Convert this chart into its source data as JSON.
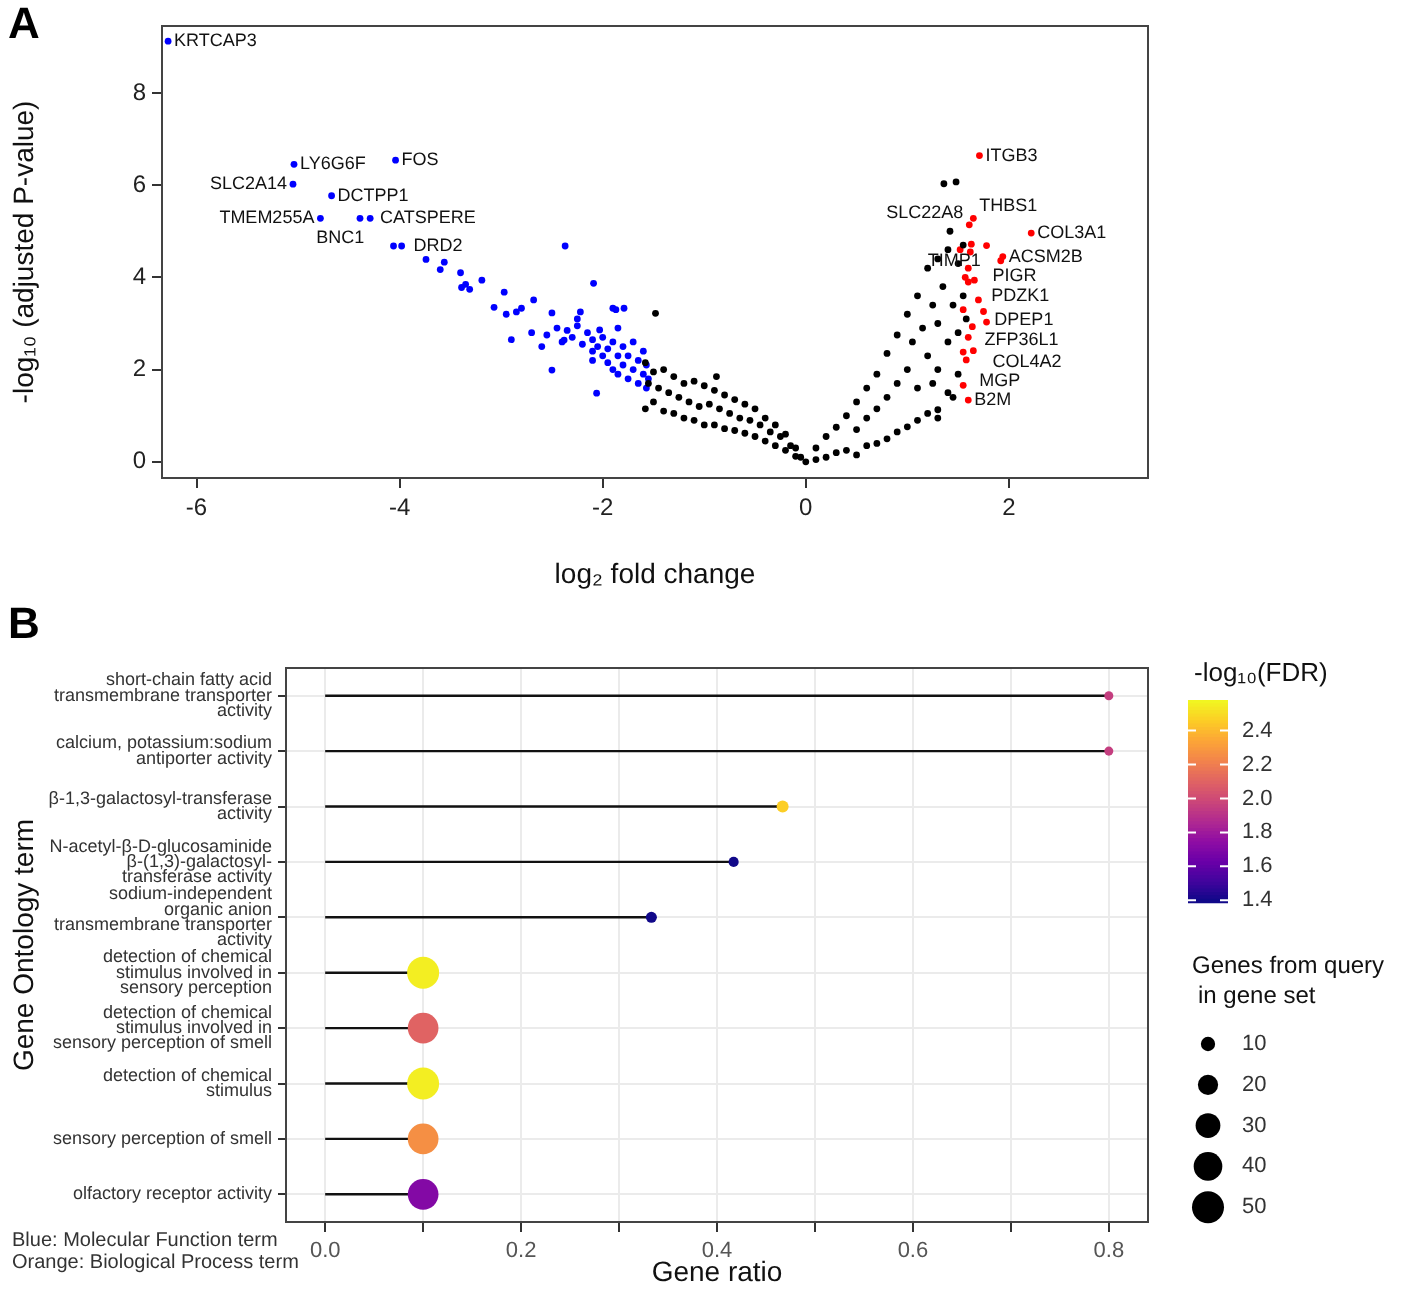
{
  "chart_data": [
    {
      "type": "scatter",
      "title": "A",
      "xlabel": "log₂ fold change",
      "ylabel": "-log₁₀ (adjusted P-value)",
      "xlim": [
        -6.34,
        3.37
      ],
      "ylim": [
        -0.35,
        9.45
      ],
      "xticks": [
        -6,
        -4,
        -2,
        0,
        2
      ],
      "yticks": [
        0,
        2,
        4,
        6,
        8
      ],
      "grid": false,
      "legend": false,
      "marker": "circle",
      "series": [
        {
          "color": "#000000",
          "x": [
            -1.58,
            -1.58,
            -1.55,
            -1.5,
            -1.5,
            -1.48,
            -1.45,
            -1.4,
            -1.4,
            -1.35,
            -1.3,
            -1.3,
            -1.25,
            -1.2,
            -1.2,
            -1.15,
            -1.1,
            -1.1,
            -1.05,
            -1.0,
            -1.0,
            -0.95,
            -0.9,
            -0.9,
            -0.88,
            -0.85,
            -0.8,
            -0.8,
            -0.75,
            -0.7,
            -0.7,
            -0.65,
            -0.6,
            -0.6,
            -0.55,
            -0.5,
            -0.5,
            -0.45,
            -0.4,
            -0.4,
            -0.35,
            -0.3,
            -0.3,
            -0.25,
            -0.2,
            -0.2,
            -0.15,
            -0.1,
            -0.1,
            -0.05,
            0,
            0.1,
            0.1,
            0.2,
            0.2,
            0.3,
            0.3,
            0.4,
            0.4,
            0.5,
            0.5,
            0.5,
            0.6,
            0.6,
            0.6,
            0.7,
            0.7,
            0.7,
            0.8,
            0.8,
            0.8,
            0.9,
            0.9,
            0.9,
            1.0,
            1.0,
            1.0,
            1.05,
            1.1,
            1.1,
            1.1,
            1.15,
            1.2,
            1.2,
            1.2,
            1.25,
            1.3,
            1.3,
            1.3,
            1.3,
            1.35,
            1.36,
            1.4,
            1.4,
            1.4,
            1.45,
            1.48,
            1.5,
            1.5,
            1.5,
            1.55,
            1.3,
            1.42,
            1.45,
            1.55,
            1.58,
            1.25
          ],
          "values": [
            2.15,
            1.15,
            1.7,
            1.95,
            1.3,
            3.22,
            1.6,
            2.0,
            1.1,
            1.5,
            1.85,
            1.05,
            1.4,
            1.7,
            0.95,
            1.3,
            1.75,
            0.9,
            1.2,
            1.65,
            0.8,
            1.25,
            1.55,
            0.8,
            1.85,
            1.15,
            1.45,
            0.72,
            1.05,
            1.35,
            0.68,
            0.95,
            1.25,
            0.62,
            0.9,
            1.15,
            0.55,
            0.8,
            0.95,
            0.45,
            0.65,
            0.8,
            0.35,
            0.55,
            0.6,
            0.25,
            0.35,
            0.3,
            0.12,
            0.1,
            0,
            0.05,
            0.3,
            0.1,
            0.55,
            0.2,
            0.75,
            0.25,
            1.0,
            0.15,
            1.3,
            0.7,
            0.35,
            1.6,
            0.95,
            0.4,
            1.9,
            1.15,
            0.5,
            2.35,
            1.4,
            0.65,
            2.75,
            1.7,
            0.76,
            3.2,
            2.0,
            2.6,
            0.9,
            3.6,
            1.6,
            2.9,
            1.05,
            4.2,
            2.3,
            3.4,
            1.13,
            4.4,
            2.0,
            3.0,
            3.8,
            6.03,
            1.5,
            4.6,
            2.6,
            3.4,
            6.07,
            1.9,
            4.3,
            2.8,
            3.6,
            0.95,
            5.0,
            1.4,
            4.7,
            3.1,
            1.7
          ]
        },
        {
          "color": "#0000ff",
          "x": [
            -6.28,
            -5.04,
            -5.05,
            -4.78,
            -4.04,
            -4.67,
            -4.39,
            -4.29,
            -4.06,
            -3.98,
            -2.37,
            -3.74,
            -3.6,
            -3.56,
            -3.4,
            -3.19,
            -3.39,
            -3.31,
            -3.35,
            -2.97,
            -2.09,
            -2.8,
            -2.68,
            -2.85,
            -3.07,
            -2.5,
            -2.22,
            -1.79,
            -2.5,
            -2.38,
            -2.03,
            -1.9,
            -1.87,
            -2.06,
            -2.55,
            -2.45,
            -2.4,
            -2.35,
            -2.3,
            -2.25,
            -2.2,
            -2.15,
            -2.1,
            -2.1,
            -2.05,
            -2.0,
            -2.0,
            -1.95,
            -1.95,
            -1.9,
            -1.9,
            -1.85,
            -1.85,
            -1.8,
            -1.8,
            -1.75,
            -1.75,
            -1.7,
            -1.7,
            -1.65,
            -1.65,
            -1.6,
            -1.6,
            -1.57,
            -1.57,
            -1.55,
            -2.6,
            -2.7,
            -2.25,
            -1.85,
            -2.9,
            -2.95,
            -2.1
          ],
          "values": [
            9.12,
            6.45,
            6.02,
            5.28,
            6.54,
            5.77,
            5.28,
            5.28,
            4.68,
            4.68,
            4.68,
            4.39,
            4.17,
            4.33,
            4.1,
            3.94,
            3.78,
            3.74,
            3.85,
            3.68,
            3.87,
            3.33,
            3.51,
            3.25,
            3.35,
            3.23,
            3.25,
            3.33,
            1.99,
            2.64,
            2.86,
            3.33,
            3.3,
            1.49,
            2.75,
            2.9,
            2.6,
            2.85,
            2.7,
            2.95,
            2.55,
            2.8,
            2.4,
            2.65,
            2.5,
            2.3,
            2.7,
            2.45,
            2.15,
            2.6,
            2.0,
            2.3,
            1.9,
            2.5,
            2.1,
            1.8,
            2.3,
            2.0,
            2.6,
            1.7,
            2.2,
            1.9,
            2.4,
            1.6,
            2.1,
            1.8,
            2.5,
            2.8,
            3.1,
            2.9,
            2.65,
            3.2,
            2.2
          ]
        },
        {
          "color": "#ff0000",
          "x": [
            1.71,
            1.61,
            1.65,
            2.22,
            1.63,
            1.78,
            1.94,
            1.92,
            1.66,
            1.6,
            1.7,
            1.78,
            1.75,
            1.64,
            1.65,
            1.55,
            1.58,
            1.6,
            1.55,
            1.52,
            1.6,
            1.62,
            1.55,
            1.6,
            1.57
          ],
          "values": [
            6.64,
            5.14,
            5.28,
            4.96,
            4.72,
            4.69,
            4.45,
            4.36,
            3.94,
            3.9,
            3.51,
            3.03,
            3.26,
            2.93,
            2.41,
            2.38,
            2.21,
            1.34,
            1.66,
            4.6,
            4.2,
            4.55,
            3.3,
            2.7,
            4.0
          ]
        }
      ],
      "annotations": [
        {
          "text": "KRTCAP3",
          "x": -6.28,
          "y": 9.12
        },
        {
          "text": "LY6G6F",
          "x": -5.04,
          "y": 6.45
        },
        {
          "text": "FOS",
          "x": -4.04,
          "y": 6.54
        },
        {
          "text": "SLC2A14",
          "x": -5.05,
          "y": 6.02
        },
        {
          "text": "DCTPP1",
          "x": -4.67,
          "y": 5.77
        },
        {
          "text": "TMEM255A",
          "x": -4.78,
          "y": 5.28
        },
        {
          "text": "CATSPERE",
          "x": -4.39,
          "y": 5.28
        },
        {
          "text": "BNC1",
          "x": -4.29,
          "y": 5.28
        },
        {
          "text": "DRD2",
          "x": -4.06,
          "y": 4.68
        },
        {
          "text": "ITGB3",
          "x": 1.71,
          "y": 6.64
        },
        {
          "text": "COL3A1",
          "x": 2.22,
          "y": 4.96
        },
        {
          "text": "THBS1",
          "x": 1.65,
          "y": 5.28
        },
        {
          "text": "SLC22A8",
          "x": 1.61,
          "y": 5.14
        },
        {
          "text": "PIGR",
          "x": 1.78,
          "y": 4.69
        },
        {
          "text": "PDZK1",
          "x": 1.63,
          "y": 4.72
        },
        {
          "text": "ACSM2B",
          "x": 1.94,
          "y": 4.45
        },
        {
          "text": "TIMP1",
          "x": 1.92,
          "y": 4.36
        },
        {
          "text": "DPEP1",
          "x": 1.66,
          "y": 3.94
        },
        {
          "text": "ZFP36L1",
          "x": 1.7,
          "y": 3.51
        },
        {
          "text": "COL4A2",
          "x": 1.78,
          "y": 3.03
        },
        {
          "text": "MGP",
          "x": 1.65,
          "y": 2.41
        },
        {
          "text": "B2M",
          "x": 1.6,
          "y": 1.34
        }
      ]
    },
    {
      "type": "lollipop",
      "orientation": "horizontal",
      "title": "B",
      "xlabel": "Gene ratio",
      "ylabel": "Gene Ontology term",
      "categories": [
        "short-chain fatty acid transmembrane transporter activity",
        "calcium, potassium:sodium antiporter activity",
        "β-1,3-galactosyl-transferase activity",
        "N-acetyl-β-D-glucosaminide β-(1,3)-galactosyl-transferase activity",
        "sodium-independent organic anion transmembrane transporter activity",
        "detection of chemical stimulus involved in sensory perception",
        "detection of chemical stimulus involved in sensory perception of smell",
        "detection of chemical stimulus",
        "sensory perception of smell",
        "olfactory receptor activity"
      ],
      "values": [
        0.8,
        0.8,
        0.467,
        0.417,
        0.333,
        0.1,
        0.1,
        0.1,
        0.1,
        0.1
      ],
      "cvalues": [
        1.95,
        1.95,
        2.46,
        1.4,
        1.4,
        2.55,
        2.1,
        2.55,
        2.26,
        1.71
      ],
      "sizes": [
        4,
        4,
        7,
        5,
        6,
        50,
        46,
        50,
        46,
        46
      ],
      "size_legend": [
        10,
        20,
        30,
        40,
        50
      ],
      "legend_title": "Genes from query in gene set",
      "clabel": "-log₁₀(FDR)",
      "clim": [
        1.39,
        2.58
      ],
      "cticks": [
        1.4,
        1.6,
        1.8,
        {
          "value": 2,
          "label": "2.0"
        },
        2.2,
        2.4
      ],
      "xlim": [
        -0.04,
        0.84
      ],
      "xticks": [
        {
          "value": 0,
          "label": "0.0"
        },
        {
          "value": 0.1,
          "label": null
        },
        0.2,
        {
          "value": 0.3,
          "label": null
        },
        0.4,
        {
          "value": 0.5,
          "label": null
        },
        0.6,
        {
          "value": 0.7,
          "label": null
        },
        0.8
      ],
      "grid": true,
      "annotations": [
        "Blue: Molecular Function term",
        "Orange: Biological Process term"
      ]
    }
  ]
}
